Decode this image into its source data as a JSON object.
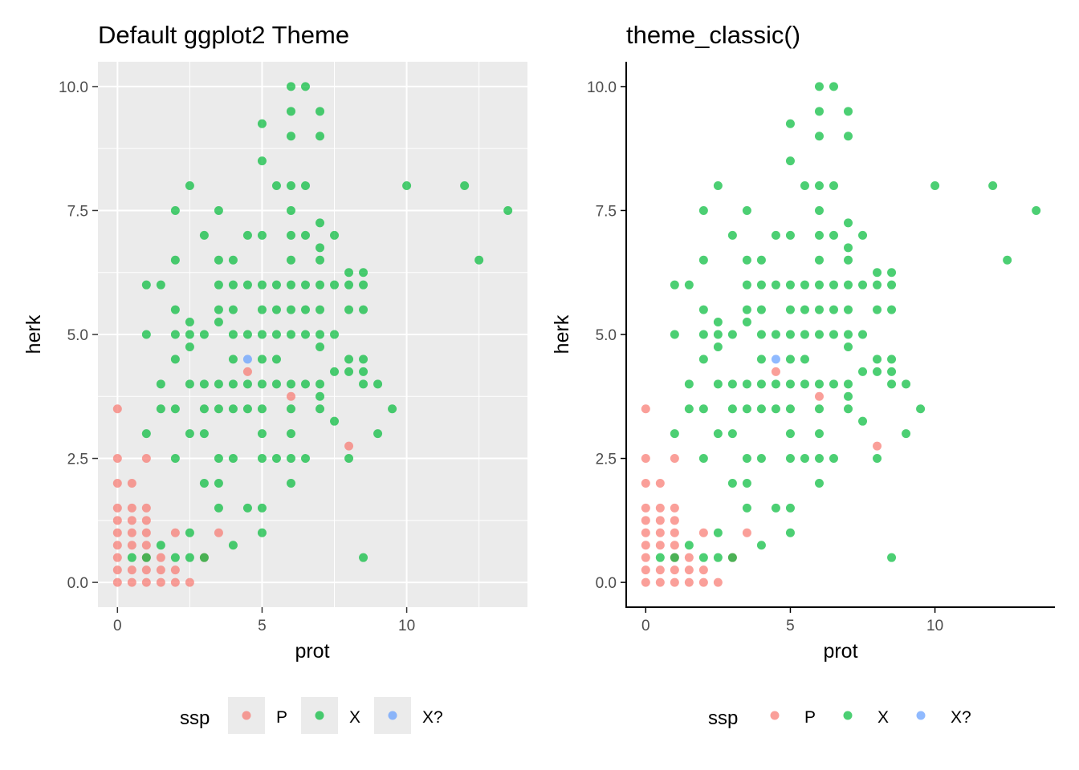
{
  "legend": {
    "title": "ssp",
    "entries": [
      "P",
      "X",
      "X?"
    ],
    "position": "bottom"
  },
  "colors": {
    "P": "#F8766D",
    "X": "#00BA38",
    "X?": "#619CFF"
  },
  "chart_data": [
    {
      "type": "scatter",
      "title": "Default ggplot2 Theme",
      "theme": "grey",
      "xlabel": "prot",
      "ylabel": "herk",
      "xlim": [
        -0.675,
        14.175
      ],
      "ylim": [
        -0.5,
        10.5
      ],
      "xticks": [
        0,
        5,
        10
      ],
      "xtick_labels": [
        "0",
        "5",
        "10"
      ],
      "yticks": [
        0,
        2.5,
        5,
        7.5,
        10
      ],
      "ytick_labels": [
        "0.0",
        "2.5",
        "5.0",
        "7.5",
        "10.0"
      ],
      "grid": true,
      "legend": "bottom"
    },
    {
      "type": "scatter",
      "title": "theme_classic()",
      "theme": "classic",
      "xlabel": "prot",
      "ylabel": "herk",
      "xlim": [
        -0.675,
        14.175
      ],
      "ylim": [
        -0.5,
        10.5
      ],
      "xticks": [
        0,
        5,
        10
      ],
      "xtick_labels": [
        "0",
        "5",
        "10"
      ],
      "yticks": [
        0,
        2.5,
        5,
        7.5,
        10
      ],
      "ytick_labels": [
        "0.0",
        "2.5",
        "5.0",
        "7.5",
        "10.0"
      ],
      "grid": false,
      "legend": "bottom"
    }
  ],
  "series": [
    {
      "name": "P",
      "points": [
        [
          0,
          0
        ],
        [
          0,
          0.25
        ],
        [
          0,
          0.5
        ],
        [
          0,
          0.75
        ],
        [
          0,
          1
        ],
        [
          0,
          1.25
        ],
        [
          0,
          1.5
        ],
        [
          0,
          2
        ],
        [
          0,
          2.5
        ],
        [
          0,
          3.5
        ],
        [
          0.5,
          0
        ],
        [
          0.5,
          0.25
        ],
        [
          0.5,
          0.75
        ],
        [
          0.5,
          1
        ],
        [
          0.5,
          1.25
        ],
        [
          0.5,
          1.5
        ],
        [
          0.5,
          2
        ],
        [
          1,
          0
        ],
        [
          1,
          0.25
        ],
        [
          1,
          0.5
        ],
        [
          1,
          0.75
        ],
        [
          1,
          1
        ],
        [
          1,
          1.25
        ],
        [
          1,
          1.5
        ],
        [
          1,
          2.5
        ],
        [
          1.5,
          0
        ],
        [
          1.5,
          0.25
        ],
        [
          1.5,
          0.5
        ],
        [
          2,
          0
        ],
        [
          2,
          0.25
        ],
        [
          2,
          1
        ],
        [
          2.5,
          0
        ],
        [
          3,
          0.5
        ],
        [
          3.5,
          1
        ],
        [
          4.5,
          4.25
        ],
        [
          6,
          3.75
        ],
        [
          8,
          2.75
        ]
      ]
    },
    {
      "name": "X",
      "points": [
        [
          0.5,
          0.5
        ],
        [
          1,
          0.5
        ],
        [
          1,
          3
        ],
        [
          1,
          5
        ],
        [
          1,
          6
        ],
        [
          1.5,
          0.75
        ],
        [
          1.5,
          3.5
        ],
        [
          1.5,
          4
        ],
        [
          1.5,
          6
        ],
        [
          2,
          0.5
        ],
        [
          2,
          2.5
        ],
        [
          2,
          3.5
        ],
        [
          2,
          4.5
        ],
        [
          2,
          5
        ],
        [
          2,
          5.5
        ],
        [
          2,
          6.5
        ],
        [
          2,
          7.5
        ],
        [
          2.5,
          0.5
        ],
        [
          2.5,
          1
        ],
        [
          2.5,
          3
        ],
        [
          2.5,
          4
        ],
        [
          2.5,
          4.75
        ],
        [
          2.5,
          5
        ],
        [
          2.5,
          5.25
        ],
        [
          2.5,
          8
        ],
        [
          3,
          0.5
        ],
        [
          3,
          2
        ],
        [
          3,
          3
        ],
        [
          3,
          3.5
        ],
        [
          3,
          4
        ],
        [
          3,
          5
        ],
        [
          3,
          7
        ],
        [
          3.5,
          1.5
        ],
        [
          3.5,
          2
        ],
        [
          3.5,
          2.5
        ],
        [
          3.5,
          3.5
        ],
        [
          3.5,
          4
        ],
        [
          3.5,
          5.25
        ],
        [
          3.5,
          5.5
        ],
        [
          3.5,
          6
        ],
        [
          3.5,
          6.5
        ],
        [
          3.5,
          7.5
        ],
        [
          4,
          0.75
        ],
        [
          4,
          2.5
        ],
        [
          4,
          3.5
        ],
        [
          4,
          4
        ],
        [
          4,
          4.5
        ],
        [
          4,
          5
        ],
        [
          4,
          5.5
        ],
        [
          4,
          6
        ],
        [
          4,
          6.5
        ],
        [
          4.5,
          1.5
        ],
        [
          4.5,
          3.5
        ],
        [
          4.5,
          4
        ],
        [
          4.5,
          5
        ],
        [
          4.5,
          6
        ],
        [
          4.5,
          7
        ],
        [
          5,
          1
        ],
        [
          5,
          1.5
        ],
        [
          5,
          2.5
        ],
        [
          5,
          3
        ],
        [
          5,
          3.5
        ],
        [
          5,
          4
        ],
        [
          5,
          4.5
        ],
        [
          5,
          5
        ],
        [
          5,
          5.5
        ],
        [
          5,
          6
        ],
        [
          5,
          7
        ],
        [
          5,
          8.5
        ],
        [
          5,
          9.25
        ],
        [
          5.5,
          2.5
        ],
        [
          5.5,
          4
        ],
        [
          5.5,
          4.5
        ],
        [
          5.5,
          5
        ],
        [
          5.5,
          5.5
        ],
        [
          5.5,
          6
        ],
        [
          5.5,
          8
        ],
        [
          6,
          2
        ],
        [
          6,
          2.5
        ],
        [
          6,
          3
        ],
        [
          6,
          3.5
        ],
        [
          6,
          4
        ],
        [
          6,
          5
        ],
        [
          6,
          5.5
        ],
        [
          6,
          6
        ],
        [
          6,
          6.5
        ],
        [
          6,
          7
        ],
        [
          6,
          7.5
        ],
        [
          6,
          8
        ],
        [
          6,
          9
        ],
        [
          6,
          9.5
        ],
        [
          6,
          10
        ],
        [
          6.5,
          2.5
        ],
        [
          6.5,
          4
        ],
        [
          6.5,
          5
        ],
        [
          6.5,
          5.5
        ],
        [
          6.5,
          6
        ],
        [
          6.5,
          7
        ],
        [
          6.5,
          8
        ],
        [
          6.5,
          10
        ],
        [
          7,
          3.5
        ],
        [
          7,
          3.75
        ],
        [
          7,
          4
        ],
        [
          7,
          4.75
        ],
        [
          7,
          5
        ],
        [
          7,
          5.5
        ],
        [
          7,
          6
        ],
        [
          7,
          6.5
        ],
        [
          7,
          6.75
        ],
        [
          7,
          7.25
        ],
        [
          7,
          9
        ],
        [
          7,
          9.5
        ],
        [
          7.5,
          3.25
        ],
        [
          7.5,
          4.25
        ],
        [
          7.5,
          5
        ],
        [
          7.5,
          6
        ],
        [
          7.5,
          7
        ],
        [
          8,
          2.5
        ],
        [
          8,
          4.25
        ],
        [
          8,
          4.5
        ],
        [
          8,
          5.5
        ],
        [
          8,
          6
        ],
        [
          8,
          6.25
        ],
        [
          8.5,
          0.5
        ],
        [
          8.5,
          4
        ],
        [
          8.5,
          4.25
        ],
        [
          8.5,
          4.5
        ],
        [
          8.5,
          5.5
        ],
        [
          8.5,
          6
        ],
        [
          8.5,
          6.25
        ],
        [
          9,
          3
        ],
        [
          9,
          4
        ],
        [
          9.5,
          3.5
        ],
        [
          10,
          8
        ],
        [
          12,
          8
        ],
        [
          12.5,
          6.5
        ],
        [
          13.5,
          7.5
        ]
      ]
    },
    {
      "name": "X?",
      "points": [
        [
          4.5,
          4.5
        ]
      ]
    }
  ]
}
